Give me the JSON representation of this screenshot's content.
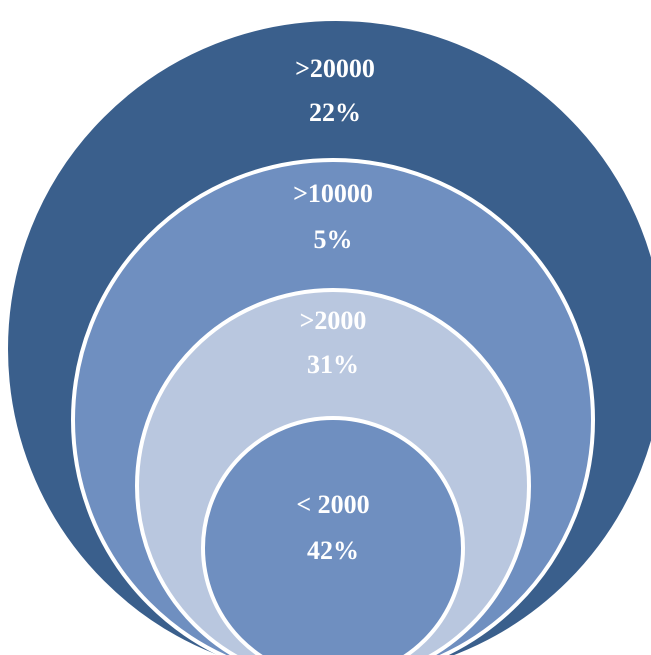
{
  "rings": [
    {
      "label": ">20000",
      "value": "22%",
      "color": "#3a5f8c"
    },
    {
      "label": ">10000",
      "value": "5%",
      "color": "#6f8fc0"
    },
    {
      "label": ">2000",
      "value": "31%",
      "color": "#b9c7df"
    },
    {
      "label": "< 2000",
      "value": "42%",
      "color": "#6f8fc0"
    }
  ]
}
